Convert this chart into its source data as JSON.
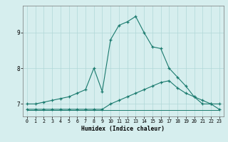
{
  "xlabel": "Humidex (Indice chaleur)",
  "x": [
    0,
    1,
    2,
    3,
    4,
    5,
    6,
    7,
    8,
    9,
    10,
    11,
    12,
    13,
    14,
    15,
    16,
    17,
    18,
    19,
    20,
    21,
    22,
    23
  ],
  "line1": [
    7.0,
    7.0,
    7.05,
    7.1,
    7.15,
    7.2,
    7.3,
    7.4,
    8.0,
    7.35,
    8.8,
    9.2,
    9.3,
    9.45,
    9.0,
    8.6,
    8.55,
    8.0,
    7.75,
    7.5,
    7.2,
    7.0,
    7.0,
    7.0
  ],
  "line2": [
    6.85,
    6.85,
    6.85,
    6.85,
    6.85,
    6.85,
    6.85,
    6.85,
    6.85,
    6.85,
    7.0,
    7.1,
    7.2,
    7.3,
    7.4,
    7.5,
    7.6,
    7.65,
    7.45,
    7.3,
    7.2,
    7.1,
    7.0,
    6.85
  ],
  "line3": [
    6.82,
    6.82,
    6.82,
    6.82,
    6.82,
    6.82,
    6.82,
    6.82,
    6.82,
    6.82,
    6.82,
    6.82,
    6.82,
    6.82,
    6.82,
    6.82,
    6.82,
    6.82,
    6.82,
    6.82,
    6.82,
    6.82,
    6.82,
    6.82
  ],
  "line_color": "#1a7a6e",
  "bg_color": "#d6eeee",
  "grid_color": "#b0d8d8",
  "ylim": [
    6.65,
    9.75
  ],
  "xlim": [
    -0.5,
    23.5
  ],
  "yticks": [
    7,
    8,
    9
  ],
  "xticks": [
    0,
    1,
    2,
    3,
    4,
    5,
    6,
    7,
    8,
    9,
    10,
    11,
    12,
    13,
    14,
    15,
    16,
    17,
    18,
    19,
    20,
    21,
    22,
    23
  ]
}
